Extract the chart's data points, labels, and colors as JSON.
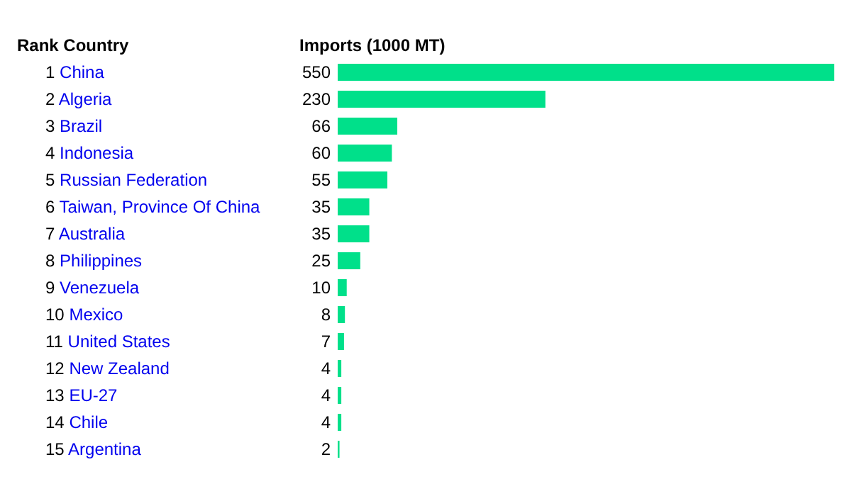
{
  "chart_data": {
    "type": "bar",
    "orientation": "horizontal",
    "ylabel": "Rank Country",
    "xlabel": "Imports (1000 MT)",
    "categories": [
      "1 China",
      "2 Algeria",
      "3 Brazil",
      "4 Indonesia",
      "5 Russian Federation",
      "6 Taiwan, Province Of China",
      "7 Australia",
      "8 Philippines",
      "9 Venezuela",
      "10 Mexico",
      "11 United States",
      "12 New Zealand",
      "13 EU-27",
      "14 Chile",
      "15 Argentina"
    ],
    "values": [
      550,
      230,
      66,
      60,
      55,
      35,
      35,
      25,
      10,
      8,
      7,
      4,
      4,
      4,
      2
    ],
    "color": "#00e08a",
    "data_labels": true
  }
}
